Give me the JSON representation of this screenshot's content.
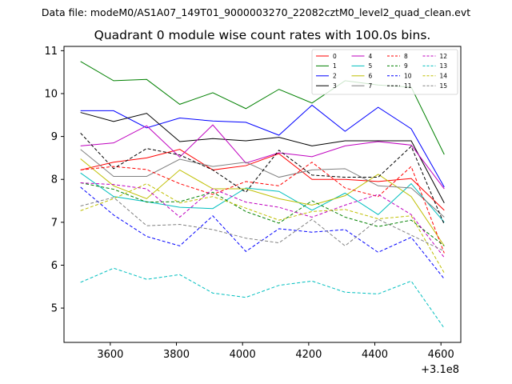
{
  "chart_data": {
    "type": "line",
    "supertitle": "Data file: modeM0/AS1A07_149T01_9000003270_22082cztM0_level2_quad_clean.evt",
    "title": "Quadrant 0 module wise count rates with 100.0s bins.",
    "xlabel": "",
    "ylabel": "",
    "x_offset_label": "+3.1e8",
    "x": [
      3510,
      3610,
      3710,
      3810,
      3910,
      4010,
      4110,
      4210,
      4310,
      4410,
      4510,
      4610
    ],
    "xlim": [
      3460,
      4660
    ],
    "ylim": [
      4.2,
      11.1
    ],
    "xticks": [
      3600,
      3800,
      4000,
      4200,
      4400,
      4600
    ],
    "yticks": [
      5,
      6,
      7,
      8,
      9,
      10,
      11
    ],
    "grid": false,
    "legend_placement": "top-right",
    "series": [
      {
        "name": "0",
        "color": "#ff0000",
        "style": "solid",
        "values": [
          8.22,
          8.4,
          8.5,
          8.7,
          8.22,
          8.32,
          8.6,
          8.0,
          8.0,
          7.95,
          8.02,
          7.28
        ]
      },
      {
        "name": "1",
        "color": "#008000",
        "style": "solid",
        "values": [
          10.75,
          10.3,
          10.33,
          9.75,
          10.02,
          9.65,
          10.1,
          9.78,
          10.3,
          10.2,
          10.15,
          8.58
        ]
      },
      {
        "name": "2",
        "color": "#0000ff",
        "style": "solid",
        "values": [
          9.6,
          9.6,
          9.2,
          9.43,
          9.36,
          9.33,
          9.03,
          9.73,
          9.12,
          9.68,
          9.18,
          7.82
        ]
      },
      {
        "name": "3",
        "color": "#000000",
        "style": "solid",
        "values": [
          9.56,
          9.35,
          9.54,
          8.88,
          8.95,
          8.9,
          8.98,
          8.78,
          8.9,
          8.9,
          8.9,
          7.45
        ]
      },
      {
        "name": "4",
        "color": "#bf00bf",
        "style": "solid",
        "values": [
          8.78,
          8.85,
          9.25,
          8.52,
          9.27,
          8.38,
          8.62,
          8.53,
          8.78,
          8.88,
          8.8,
          7.78
        ]
      },
      {
        "name": "5",
        "color": "#00bfbf",
        "style": "solid",
        "values": [
          8.15,
          7.6,
          7.48,
          7.35,
          7.32,
          7.8,
          7.72,
          7.28,
          7.68,
          7.18,
          7.9,
          7.0
        ]
      },
      {
        "name": "6",
        "color": "#bfbf00",
        "style": "solid",
        "values": [
          8.48,
          7.85,
          7.55,
          8.22,
          7.78,
          7.78,
          7.55,
          7.4,
          7.62,
          8.12,
          7.6,
          6.45
        ]
      },
      {
        "name": "7",
        "color": "#808080",
        "style": "solid",
        "values": [
          8.7,
          8.07,
          8.07,
          8.47,
          8.3,
          8.4,
          8.05,
          8.22,
          8.25,
          7.85,
          7.8,
          7.12
        ]
      },
      {
        "name": "8",
        "color": "#ff0000",
        "style": "dashed",
        "values": [
          8.22,
          8.3,
          8.23,
          7.9,
          7.65,
          7.95,
          7.85,
          8.4,
          7.8,
          7.6,
          8.3,
          6.28
        ]
      },
      {
        "name": "9",
        "color": "#008000",
        "style": "dashed",
        "values": [
          7.92,
          7.77,
          7.47,
          7.48,
          7.7,
          7.25,
          6.98,
          7.5,
          7.12,
          6.9,
          7.05,
          6.45
        ]
      },
      {
        "name": "10",
        "color": "#0000ff",
        "style": "dashed",
        "values": [
          7.82,
          7.17,
          6.67,
          6.45,
          7.15,
          6.32,
          6.85,
          6.77,
          6.83,
          6.3,
          6.65,
          5.68
        ]
      },
      {
        "name": "11",
        "color": "#000000",
        "style": "dashed",
        "values": [
          9.08,
          8.25,
          8.72,
          8.57,
          8.22,
          7.7,
          8.68,
          8.1,
          8.05,
          8.05,
          8.77,
          6.95
        ]
      },
      {
        "name": "12",
        "color": "#bf00bf",
        "style": "dashed",
        "values": [
          7.92,
          7.88,
          7.78,
          7.12,
          7.78,
          7.47,
          7.35,
          7.12,
          7.4,
          7.65,
          7.18,
          6.18
        ]
      },
      {
        "name": "13",
        "color": "#00bfbf",
        "style": "dashed",
        "values": [
          5.6,
          5.93,
          5.67,
          5.78,
          5.35,
          5.25,
          5.53,
          5.63,
          5.37,
          5.33,
          5.63,
          4.53
        ]
      },
      {
        "name": "14",
        "color": "#bfbf00",
        "style": "dashed",
        "values": [
          7.27,
          7.55,
          7.9,
          7.45,
          7.6,
          7.33,
          7.05,
          7.25,
          7.3,
          7.08,
          7.15,
          5.82
        ]
      },
      {
        "name": "15",
        "color": "#808080",
        "style": "dashed",
        "values": [
          7.38,
          7.58,
          6.92,
          6.95,
          6.83,
          6.63,
          6.52,
          7.07,
          6.45,
          7.07,
          6.7,
          6.33
        ]
      }
    ]
  }
}
